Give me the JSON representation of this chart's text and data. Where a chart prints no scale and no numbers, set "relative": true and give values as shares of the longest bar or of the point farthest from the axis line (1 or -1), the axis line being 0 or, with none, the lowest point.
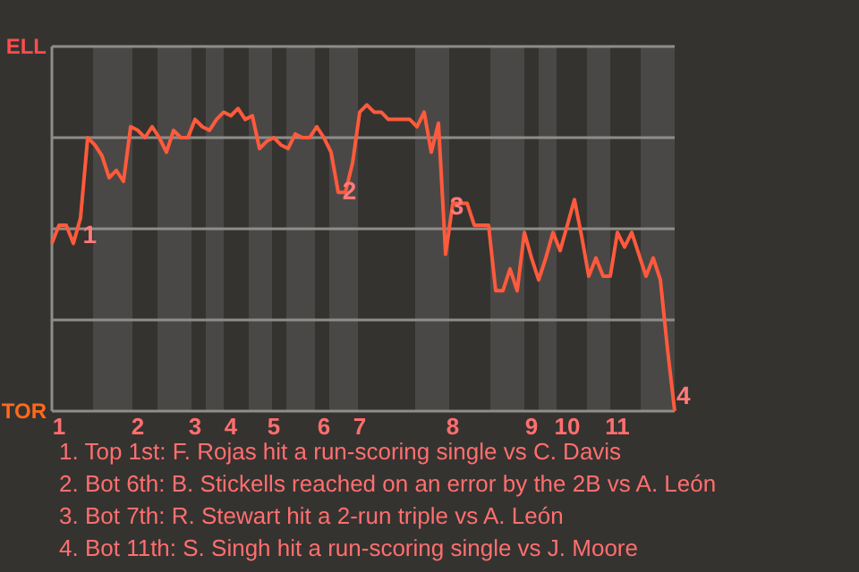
{
  "chart_data": {
    "type": "line",
    "relative": true,
    "categories": [
      null,
      "1",
      null,
      null,
      null,
      null,
      null,
      null,
      null,
      null,
      null,
      null,
      "2",
      null,
      null,
      null,
      null,
      null,
      null,
      null,
      "3",
      null,
      null,
      null,
      null,
      "4",
      null,
      null,
      null,
      null,
      null,
      "5",
      null,
      null,
      null,
      null,
      null,
      null,
      "6",
      null,
      null,
      null,
      null,
      "7",
      null,
      null,
      null,
      null,
      null,
      null,
      null,
      null,
      null,
      null,
      null,
      null,
      "8",
      null,
      null,
      null,
      null,
      null,
      null,
      null,
      null,
      null,
      null,
      "9",
      null,
      null,
      null,
      null,
      "10",
      null,
      null,
      null,
      null,
      null,
      null,
      "11",
      null,
      null,
      null,
      null,
      null,
      null,
      null,
      null
    ],
    "series": [
      {
        "color": "#ff5a3c",
        "values": [
          -0.08,
          0.02,
          0.02,
          -0.08,
          0.06,
          0.5,
          0.46,
          0.4,
          0.28,
          0.32,
          0.26,
          0.56,
          0.54,
          0.5,
          0.56,
          0.5,
          0.42,
          0.54,
          0.5,
          0.5,
          0.6,
          0.56,
          0.54,
          0.6,
          0.64,
          0.62,
          0.66,
          0.6,
          0.62,
          0.44,
          0.48,
          0.5,
          0.46,
          0.44,
          0.52,
          0.5,
          0.5,
          0.56,
          0.5,
          0.42,
          0.2,
          0.2,
          0.36,
          0.64,
          0.68,
          0.64,
          0.64,
          0.6,
          0.6,
          0.6,
          0.6,
          0.56,
          0.64,
          0.42,
          0.58,
          -0.14,
          0.14,
          0.14,
          0.14,
          0.02,
          0.02,
          0.02,
          -0.34,
          -0.34,
          -0.22,
          -0.34,
          -0.02,
          -0.16,
          -0.28,
          -0.16,
          -0.02,
          -0.12,
          0.02,
          0.16,
          -0.04,
          -0.26,
          -0.16,
          -0.26,
          -0.26,
          -0.02,
          -0.1,
          -0.02,
          -0.14,
          -0.26,
          -0.16,
          -0.28,
          -0.66,
          -1
        ]
      }
    ],
    "grid": "y",
    "annotations": [
      "ELL",
      "TOR",
      "1",
      "2",
      "3",
      "4",
      "1. Top 1st: F. Rojas hit a run-scoring single vs C. Davis",
      "2. Bot 6th: B. Stickells reached on an error by the 2B vs A. León",
      "3. Bot 7th: R. Stewart hit a 2-run triple vs A. León",
      "4. Bot 11th: S. Singh hit a run-scoring single vs J. Moore"
    ]
  }
}
